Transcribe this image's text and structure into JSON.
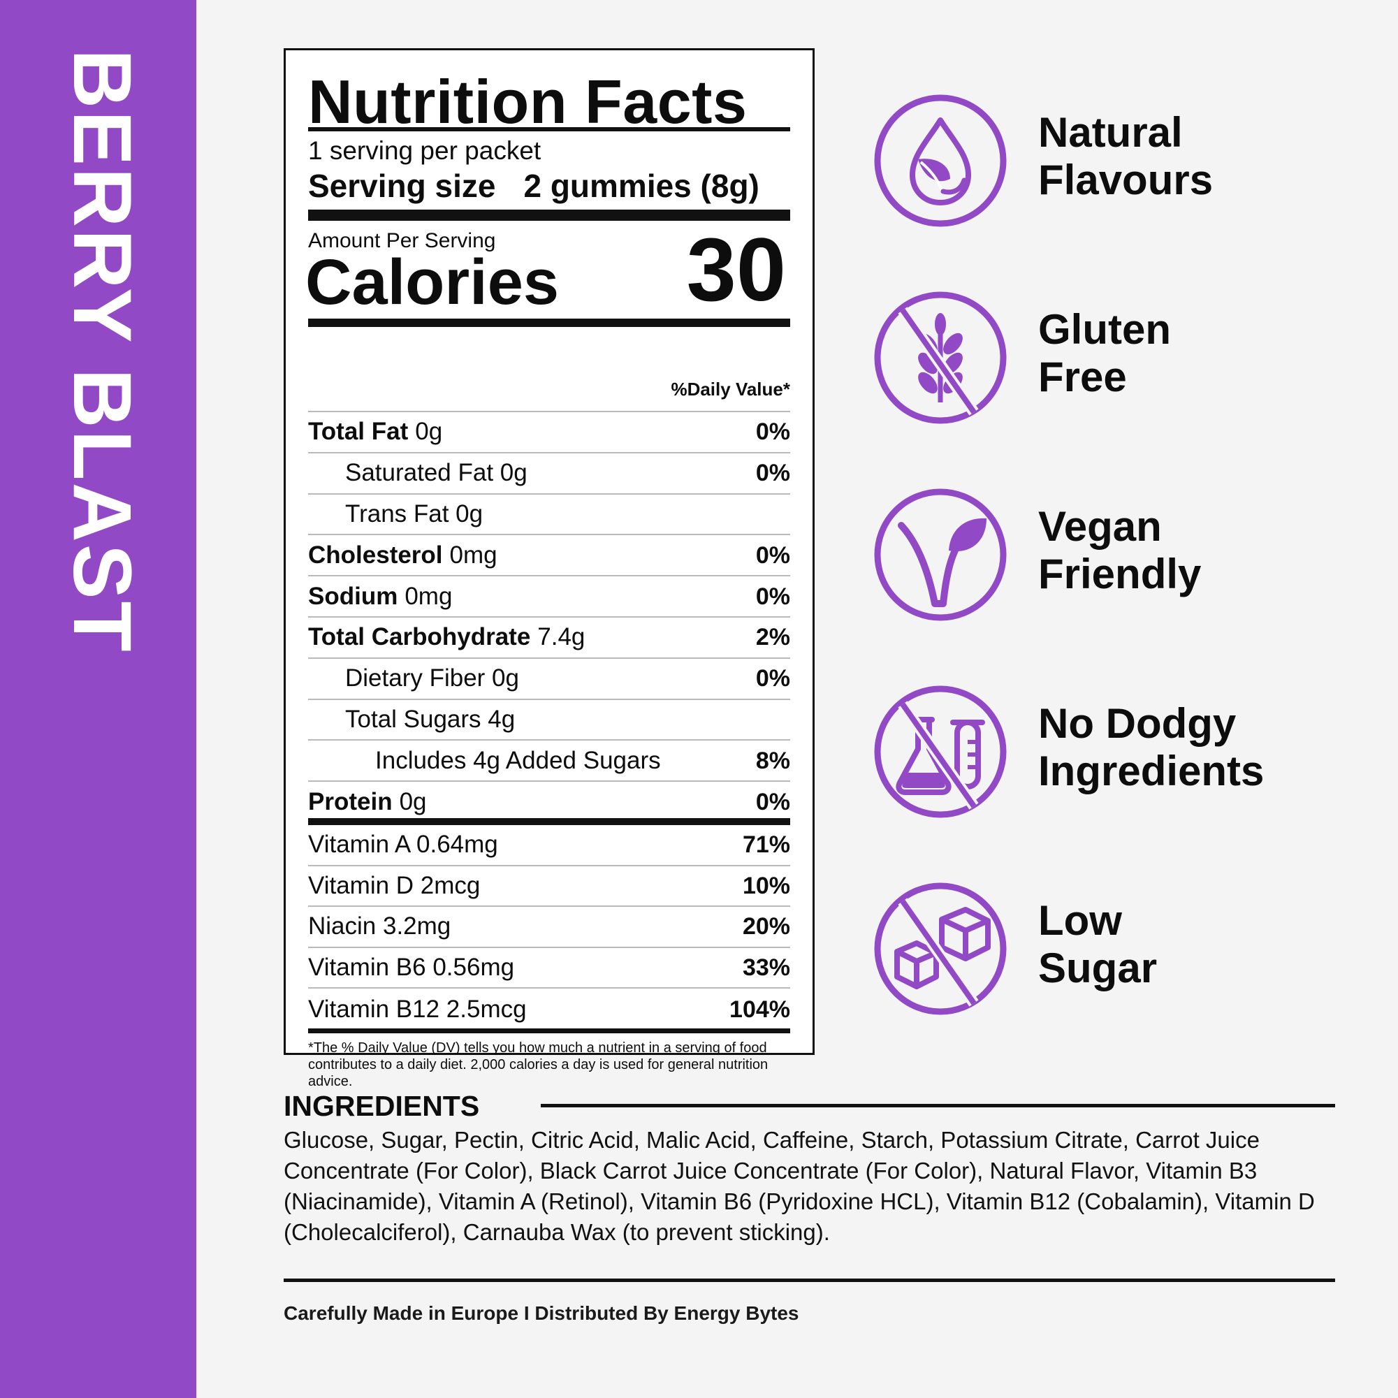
{
  "product": {
    "flavor": "BERRY BLAST"
  },
  "nutrition": {
    "title": "Nutrition Facts",
    "servings_per": "1 serving per packet",
    "serving_size_label": "Serving size",
    "serving_size_value": "2 gummies (8g)",
    "amount_per_serving": "Amount Per Serving",
    "calories_label": "Calories",
    "calories_value": "30",
    "daily_value_header": "%Daily Value*",
    "rows": [
      {
        "bold": "Total Fat",
        "name": "0g",
        "pct": "0%"
      },
      {
        "bold": "",
        "name": "Saturated Fat 0g",
        "pct": "0%"
      },
      {
        "bold": "",
        "name": "Trans Fat 0g",
        "pct": ""
      },
      {
        "bold": "Cholesterol",
        "name": "0mg",
        "pct": "0%"
      },
      {
        "bold": "Sodium",
        "name": "0mg",
        "pct": "0%"
      },
      {
        "bold": "Total Carbohydrate",
        "name": "7.4g",
        "pct": "2%"
      },
      {
        "bold": "",
        "name": "Dietary Fiber 0g",
        "pct": "0%"
      },
      {
        "bold": "",
        "name": "Total Sugars 4g",
        "pct": ""
      },
      {
        "bold": "",
        "name": "Includes 4g Added Sugars",
        "pct": "8%"
      },
      {
        "bold": "Protein",
        "name": "0g",
        "pct": "0%"
      }
    ],
    "vitamins": [
      {
        "name": "Vitamin A 0.64mg",
        "pct": "71%"
      },
      {
        "name": "Vitamin D 2mcg",
        "pct": "10%"
      },
      {
        "name": "Niacin 3.2mg",
        "pct": "20%"
      },
      {
        "name": "Vitamin B6 0.56mg",
        "pct": "33%"
      },
      {
        "name": "Vitamin B12 2.5mcg",
        "pct": "104%"
      }
    ],
    "footnote": "*The % Daily Value (DV) tells you how much a nutrient in a serving of food contributes to a daily diet. 2,000 calories a day is used for general nutrition advice."
  },
  "features": [
    {
      "line1": "Natural",
      "line2": "Flavours",
      "icon": "drop-leaf-icon"
    },
    {
      "line1": "Gluten",
      "line2": "Free",
      "icon": "no-wheat-icon"
    },
    {
      "line1": "Vegan",
      "line2": "Friendly",
      "icon": "vegan-leaf-icon"
    },
    {
      "line1": "No Dodgy",
      "line2": "Ingredients",
      "icon": "no-chemicals-icon"
    },
    {
      "line1": "Low",
      "line2": "Sugar",
      "icon": "no-sugar-cube-icon"
    }
  ],
  "ingredients": {
    "heading": "INGREDIENTS",
    "text": "Glucose, Sugar, Pectin, Citric Acid, Malic Acid, Caffeine, Starch, Potassium Citrate, Carrot Juice Concentrate (For Color), Black Carrot Juice Concentrate (For Color), Natural Flavor, Vitamin B3 (Niacinamide), Vitamin A (Retinol), Vitamin B6 (Pyridoxine HCL), Vitamin B12 (Cobalamin), Vitamin D (Cholecalciferol), Carnauba Wax (to prevent sticking)."
  },
  "footer": {
    "made_in": "Carefully Made in Europe I Distributed By Energy Bytes"
  },
  "colors": {
    "purple": "#9249c6",
    "background": "#f4f4f4",
    "text": "#0d0d0d"
  }
}
